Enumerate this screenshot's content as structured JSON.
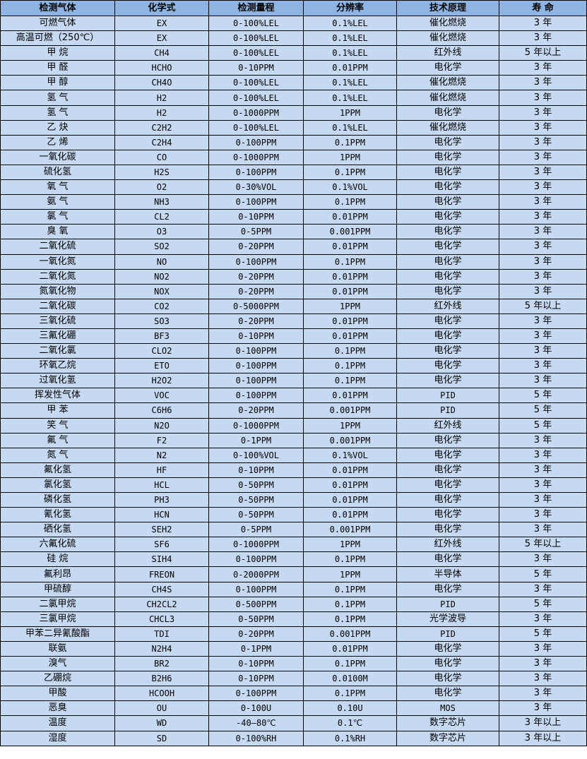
{
  "headers": [
    "检测气体",
    "化学式",
    "检测量程",
    "分辨率",
    "技术原理",
    "寿 命"
  ],
  "rows": [
    [
      "可燃气体",
      "EX",
      "0-100%LEL",
      "0.1%LEL",
      "催化燃烧",
      "3 年"
    ],
    [
      "高温可燃（250℃）",
      "EX",
      "0-100%LEL",
      "0.1%LEL",
      "催化燃烧",
      "3 年"
    ],
    [
      "甲 烷",
      "CH4",
      "0-100%LEL",
      "0.1%LEL",
      "红外线",
      "5 年以上"
    ],
    [
      "甲 醛",
      "HCHO",
      "0-10PPM",
      "0.01PPM",
      "电化学",
      "3 年"
    ],
    [
      "甲 醇",
      "CH4O",
      "0-100%LEL",
      "0.1%LEL",
      "催化燃烧",
      "3 年"
    ],
    [
      "氢 气",
      "H2",
      "0-100%LEL",
      "0.1%LEL",
      "催化燃烧",
      "3 年"
    ],
    [
      "氢 气",
      "H2",
      "0-1000PPM",
      "1PPM",
      "电化学",
      "3 年"
    ],
    [
      "乙 炔",
      "C2H2",
      "0-100%LEL",
      "0.1%LEL",
      "催化燃烧",
      "3 年"
    ],
    [
      "乙 烯",
      "C2H4",
      "0-100PPM",
      "0.1PPM",
      "电化学",
      "3 年"
    ],
    [
      "一氧化碳",
      "CO",
      "0-1000PPM",
      "1PPM",
      "电化学",
      "3 年"
    ],
    [
      "硫化氢",
      "H2S",
      "0-100PPM",
      "0.1PPM",
      "电化学",
      "3 年"
    ],
    [
      "氧 气",
      "O2",
      "0-30%VOL",
      "0.1%VOL",
      "电化学",
      "3 年"
    ],
    [
      "氨 气",
      "NH3",
      "0-100PPM",
      "0.1PPM",
      "电化学",
      "3 年"
    ],
    [
      "氯 气",
      "CL2",
      "0-10PPM",
      "0.01PPM",
      "电化学",
      "3 年"
    ],
    [
      "臭 氧",
      "O3",
      "0-5PPM",
      "0.001PPM",
      "电化学",
      "3 年"
    ],
    [
      "二氧化硫",
      "SO2",
      "0-20PPM",
      "0.01PPM",
      "电化学",
      "3 年"
    ],
    [
      "一氧化氮",
      "NO",
      "0-100PPM",
      "0.1PPM",
      "电化学",
      "3 年"
    ],
    [
      "二氧化氮",
      "NO2",
      "0-20PPM",
      "0.01PPM",
      "电化学",
      "3 年"
    ],
    [
      "氮氧化物",
      "NOX",
      "0-20PPM",
      "0.01PPM",
      "电化学",
      "3 年"
    ],
    [
      "二氧化碳",
      "CO2",
      "0-5000PPM",
      "1PPM",
      "红外线",
      "5 年以上"
    ],
    [
      "三氧化硫",
      "SO3",
      "0-20PPM",
      "0.01PPM",
      "电化学",
      "3 年"
    ],
    [
      "三氟化硼",
      "BF3",
      "0-10PPM",
      "0.01PPM",
      "电化学",
      "3 年"
    ],
    [
      "二氧化氯",
      "CLO2",
      "0-100PPM",
      "0.1PPM",
      "电化学",
      "3 年"
    ],
    [
      "环氧乙烷",
      "ETO",
      "0-100PPM",
      "0.1PPM",
      "电化学",
      "3 年"
    ],
    [
      "过氧化氢",
      "H2O2",
      "0-100PPM",
      "0.1PPM",
      "电化学",
      "3 年"
    ],
    [
      "挥发性气体",
      "VOC",
      "0-100PPM",
      "0.01PPM",
      "PID",
      "5 年"
    ],
    [
      "甲 苯",
      "C6H6",
      "0-20PPM",
      "0.001PPM",
      "PID",
      "5 年"
    ],
    [
      "笑 气",
      "N2O",
      "0-1000PPM",
      "1PPM",
      "红外线",
      "5 年"
    ],
    [
      "氟 气",
      "F2",
      "0-1PPM",
      "0.001PPM",
      "电化学",
      "3 年"
    ],
    [
      "氮 气",
      "N2",
      "0-100%VOL",
      "0.1%VOL",
      "电化学",
      "3 年"
    ],
    [
      "氟化氢",
      "HF",
      "0-10PPM",
      "0.01PPM",
      "电化学",
      "3 年"
    ],
    [
      "氯化氢",
      "HCL",
      "0-50PPM",
      "0.01PPM",
      "电化学",
      "3 年"
    ],
    [
      "磷化氢",
      "PH3",
      "0-50PPM",
      "0.01PPM",
      "电化学",
      "3 年"
    ],
    [
      "氰化氢",
      "HCN",
      "0-50PPM",
      "0.01PPM",
      "电化学",
      "3 年"
    ],
    [
      "硒化氢",
      "SEH2",
      "0-5PPM",
      "0.001PPM",
      "电化学",
      "3 年"
    ],
    [
      "六氟化硫",
      "SF6",
      "0-1000PPM",
      "1PPM",
      "红外线",
      "5 年以上"
    ],
    [
      "硅 烷",
      "SIH4",
      "0-100PPM",
      "0.1PPM",
      "电化学",
      "3 年"
    ],
    [
      "氟利昂",
      "FREON",
      "0-2000PPM",
      "1PPM",
      "半导体",
      "5 年"
    ],
    [
      "甲硫醇",
      "CH4S",
      "0-100PPM",
      "0.1PPM",
      "电化学",
      "3 年"
    ],
    [
      "二氯甲烷",
      "CH2CL2",
      "0-500PPM",
      "0.1PPM",
      "PID",
      "5 年"
    ],
    [
      "三氯甲烷",
      "CHCL3",
      "0-50PPM",
      "0.1PPM",
      "光学波导",
      "3 年"
    ],
    [
      "甲苯二异氰酸酯",
      "TDI",
      "0-20PPM",
      "0.001PPM",
      "PID",
      "5 年"
    ],
    [
      "联氨",
      "N2H4",
      "0-1PPM",
      "0.01PPM",
      "电化学",
      "3 年"
    ],
    [
      "溴气",
      "BR2",
      "0-10PPM",
      "0.1PPM",
      "电化学",
      "3 年"
    ],
    [
      "乙硼烷",
      "B2H6",
      "0-10PPM",
      "0.0100M",
      "电化学",
      "3 年"
    ],
    [
      "甲酸",
      "HCOOH",
      "0-100PPM",
      "0.1PPM",
      "电化学",
      "3 年"
    ],
    [
      "恶臭",
      "OU",
      "0-100U",
      "0.10U",
      "MOS",
      "3 年"
    ],
    [
      "温度",
      "WD",
      "-40—80℃",
      "0.1℃",
      "数字芯片",
      "3 年以上"
    ],
    [
      "湿度",
      "SD",
      "0-100%RH",
      "0.1%RH",
      "数字芯片",
      "3 年以上"
    ]
  ],
  "colors": {
    "header_bg": "#8db4e2",
    "row_bg": "#c5d9f1",
    "border": "#000000"
  }
}
